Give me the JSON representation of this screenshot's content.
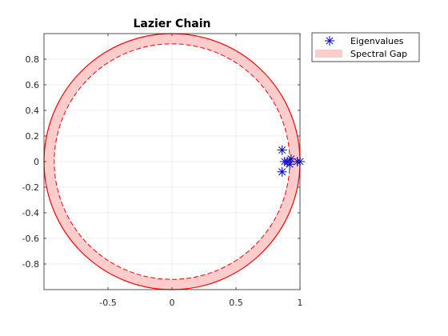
{
  "chart_data": {
    "type": "scatter",
    "title": "Lazier Chain",
    "xlabel": "",
    "ylabel": "",
    "xlim": [
      -1,
      1
    ],
    "ylim": [
      -1,
      1
    ],
    "x_ticks": [
      -0.5,
      0,
      0.5,
      1
    ],
    "x_tick_labels": [
      "-0.5",
      "0",
      "0.5",
      "1"
    ],
    "y_ticks": [
      -0.8,
      -0.6,
      -0.4,
      -0.2,
      0,
      0.2,
      0.4,
      0.6,
      0.8
    ],
    "y_tick_labels": [
      "-0.8",
      "-0.6",
      "-0.4",
      "-0.2",
      "0",
      "0.2",
      "0.4",
      "0.6",
      "0.8"
    ],
    "grid": true,
    "legend_location": "outside top-right",
    "spectral_gap": {
      "name": "Spectral Gap",
      "outer_radius": 1.0,
      "inner_radius": 0.92,
      "fill_color": "#ffcccc",
      "edge_color": "#ff0000"
    },
    "series": [
      {
        "name": "Eigenvalues",
        "marker": "asterisk",
        "color": "#0000cc",
        "points": [
          {
            "x": 1.0,
            "y": 0.0
          },
          {
            "x": 0.98,
            "y": 0.0
          },
          {
            "x": 0.93,
            "y": 0.02
          },
          {
            "x": 0.92,
            "y": -0.02
          },
          {
            "x": 0.9,
            "y": 0.0
          },
          {
            "x": 0.88,
            "y": 0.0
          },
          {
            "x": 0.86,
            "y": 0.09
          },
          {
            "x": 0.86,
            "y": -0.08
          }
        ]
      }
    ]
  },
  "legend": {
    "eigen_label": "Eigenvalues",
    "gap_label": "Spectral Gap"
  },
  "colors": {
    "axes_line": "#262626",
    "grid": "#dfdfdf",
    "marker": "#0000cc",
    "gap_fill": "#ffcccc",
    "gap_edge": "#ff0000"
  }
}
